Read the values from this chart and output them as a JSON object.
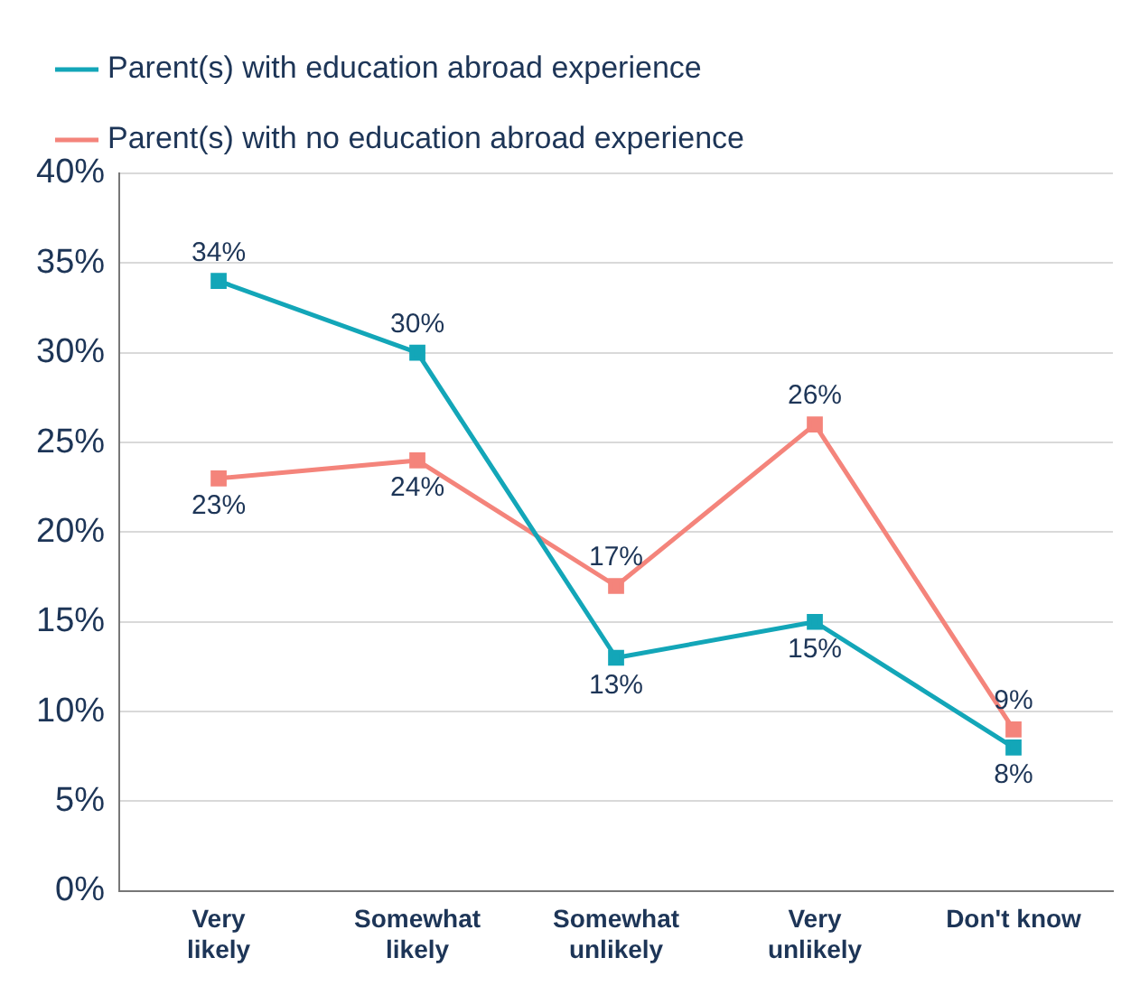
{
  "chart_data": {
    "type": "line",
    "categories": [
      "Very likely",
      "Somewhat likely",
      "Somewhat unlikely",
      "Very unlikely",
      "Don't know"
    ],
    "series": [
      {
        "name": "Parent(s) with education abroad experience",
        "color": "#13a6b8",
        "values": [
          34,
          30,
          13,
          15,
          8
        ],
        "value_labels": [
          "34%",
          "30%",
          "13%",
          "15%",
          "8%"
        ]
      },
      {
        "name": "Parent(s) with no education abroad experience",
        "color": "#f4847b",
        "values": [
          23,
          24,
          17,
          26,
          9
        ],
        "value_labels": [
          "23%",
          "24%",
          "17%",
          "26%",
          "9%"
        ]
      }
    ],
    "ylim": [
      0,
      40
    ],
    "yticks": [
      {
        "value": 0,
        "label": "0%"
      },
      {
        "value": 5,
        "label": "5%"
      },
      {
        "value": 10,
        "label": "10%"
      },
      {
        "value": 15,
        "label": "15%"
      },
      {
        "value": 20,
        "label": "20%"
      },
      {
        "value": 25,
        "label": "25%"
      },
      {
        "value": 30,
        "label": "30%"
      },
      {
        "value": 35,
        "label": "35%"
      },
      {
        "value": 40,
        "label": "40%"
      }
    ],
    "grid": "y",
    "legend": "top left",
    "marker": "square",
    "line_style": "solid"
  }
}
